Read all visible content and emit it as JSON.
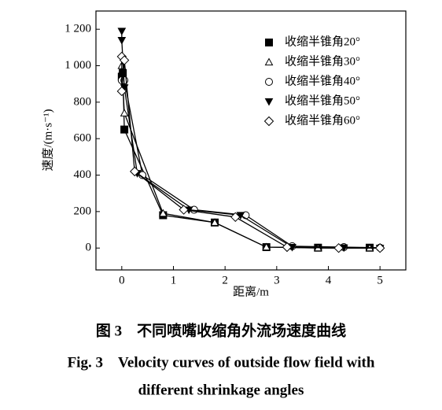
{
  "chart_data": {
    "type": "line",
    "x_label": "距离/m",
    "y_label": "速度/(m·s⁻¹)",
    "xlim": [
      -0.5,
      5.5
    ],
    "ylim": [
      -120,
      1300
    ],
    "xticks": [
      0,
      1,
      2,
      3,
      4,
      5
    ],
    "yticks": [
      0,
      200,
      400,
      600,
      800,
      {
        "value": 1000,
        "label": "1 000"
      },
      {
        "value": 1200,
        "label": "1 200"
      }
    ],
    "legend": "upper right",
    "series": [
      {
        "name": "收缩半锥角20°",
        "color": "#000",
        "marker": "square",
        "filled": true,
        "x": [
          0,
          0.02,
          0.05,
          0.8,
          1.8,
          2.8,
          3.8,
          4.8
        ],
        "values": [
          940,
          960,
          650,
          180,
          140,
          5,
          2,
          2
        ]
      },
      {
        "name": "收缩半锥角30°",
        "color": "#000",
        "marker": "triangle",
        "filled": false,
        "x": [
          0,
          0.05,
          0.8,
          1.8,
          2.8,
          3.8,
          4.8
        ],
        "values": [
          1000,
          740,
          190,
          140,
          5,
          0,
          0
        ]
      },
      {
        "name": "收缩半锥角40°",
        "color": "#000",
        "marker": "circle",
        "filled": false,
        "x": [
          0,
          0.05,
          0.4,
          1.4,
          2.4,
          3.3,
          4.3,
          5
        ],
        "values": [
          920,
          920,
          400,
          210,
          180,
          10,
          5,
          2
        ]
      },
      {
        "name": "收缩半锥角50°",
        "color": "#000",
        "marker": "triangle-down",
        "filled": true,
        "x": [
          0,
          0,
          0.05,
          0.3,
          1.3,
          2.3,
          3.3,
          4.3,
          5
        ],
        "values": [
          1190,
          1140,
          880,
          410,
          210,
          180,
          5,
          2,
          0
        ]
      },
      {
        "name": "收缩半锥角60°",
        "color": "#000",
        "marker": "diamond",
        "filled": false,
        "x": [
          0,
          0,
          0.05,
          0.25,
          1.2,
          2.2,
          3.2,
          4.2,
          5
        ],
        "values": [
          1050,
          860,
          1030,
          420,
          210,
          170,
          5,
          0,
          0
        ]
      }
    ]
  },
  "caption": {
    "zh": "图 3　不同喷嘴收缩角外流场速度曲线",
    "en_line1": "Fig. 3　Velocity curves of outside flow field with",
    "en_line2": "different shrinkage angles"
  }
}
